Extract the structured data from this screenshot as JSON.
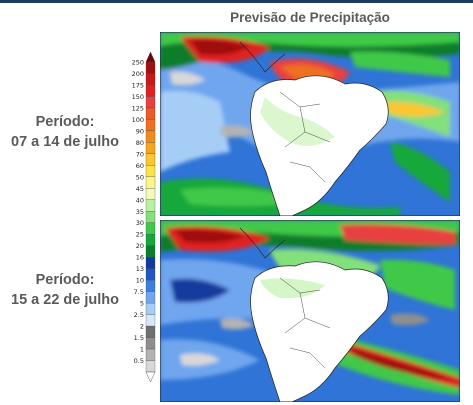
{
  "title": "Previsão de Precipitação",
  "periods": [
    {
      "label": "Período:",
      "dates": "07 a 14 de julho"
    },
    {
      "label": "Período:",
      "dates": "15 a 22 de julho"
    }
  ],
  "colorbar": {
    "levels": [
      {
        "value": "250",
        "color": "#a01010"
      },
      {
        "value": "200",
        "color": "#c81818"
      },
      {
        "value": "175",
        "color": "#e02020"
      },
      {
        "value": "150",
        "color": "#e84040"
      },
      {
        "value": "125",
        "color": "#ec5a2a"
      },
      {
        "value": "100",
        "color": "#f07020"
      },
      {
        "value": "90",
        "color": "#f38a1c"
      },
      {
        "value": "80",
        "color": "#f7a520"
      },
      {
        "value": "70",
        "color": "#fbc630"
      },
      {
        "value": "60",
        "color": "#fde34a"
      },
      {
        "value": "50",
        "color": "#fff488"
      },
      {
        "value": "45",
        "color": "#f4fbb8"
      },
      {
        "value": "40",
        "color": "#b9f0a2"
      },
      {
        "value": "35",
        "color": "#84e07a"
      },
      {
        "value": "30",
        "color": "#3fc94a"
      },
      {
        "value": "25",
        "color": "#14a83a"
      },
      {
        "value": "20",
        "color": "#0b7d2c"
      },
      {
        "value": "16",
        "color": "#123a9e"
      },
      {
        "value": "13",
        "color": "#1f56c4"
      },
      {
        "value": "10",
        "color": "#3c7ee0"
      },
      {
        "value": "7.5",
        "color": "#6fa6ee"
      },
      {
        "value": "5",
        "color": "#a6cdf6"
      },
      {
        "value": "2.5",
        "color": "#d6e9fb"
      },
      {
        "value": "2",
        "color": "#6f6f6f"
      },
      {
        "value": "1.5",
        "color": "#8f8f8f"
      },
      {
        "value": "1",
        "color": "#b3b3b3"
      },
      {
        "value": "0.5",
        "color": "#d8d8d8"
      }
    ]
  }
}
